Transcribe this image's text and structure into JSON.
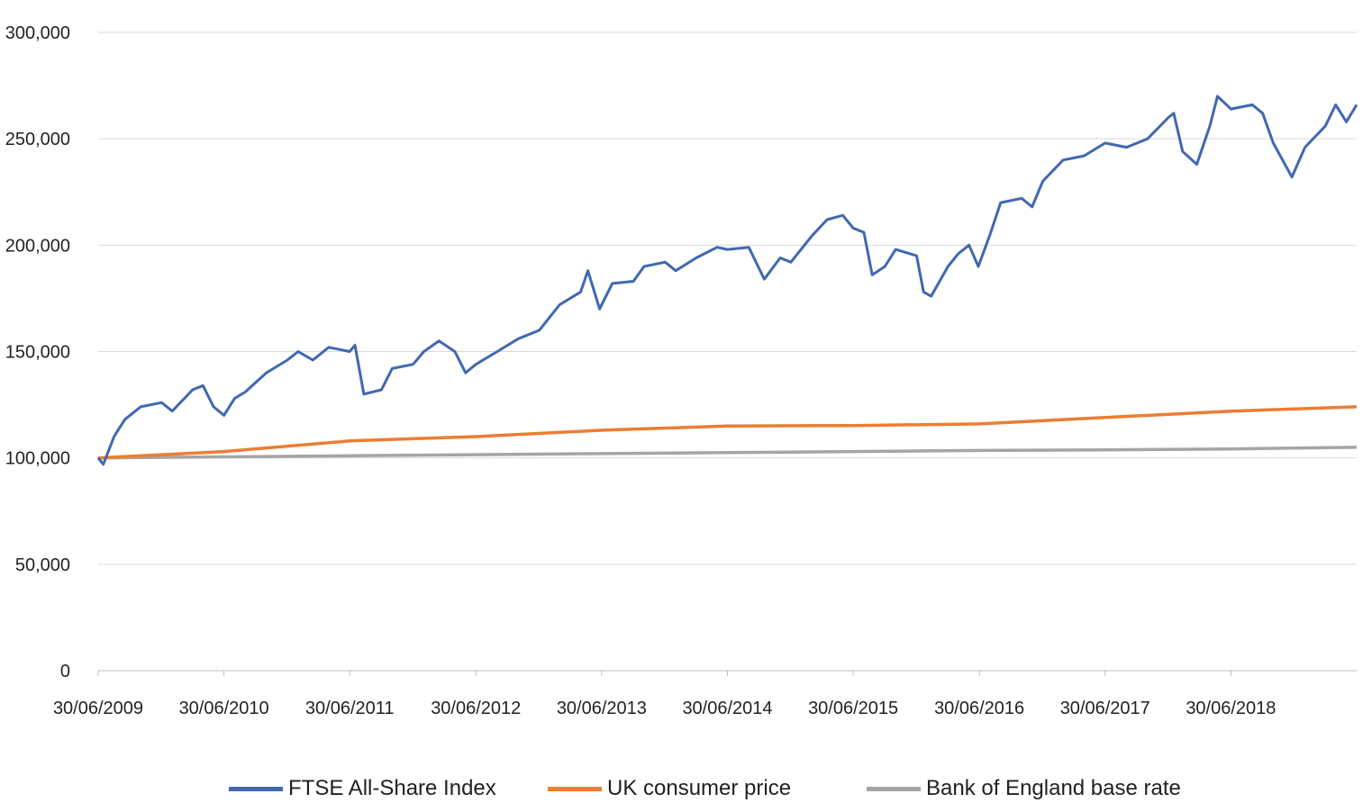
{
  "chart_data": {
    "type": "line",
    "y_ticks": [
      "0",
      "50,000",
      "100,000",
      "150,000",
      "200,000",
      "250,000",
      "300,000"
    ],
    "ylim": [
      0,
      300000
    ],
    "x_ticks": [
      {
        "label": "30/06/2009",
        "date": "2009-06-30"
      },
      {
        "label": "30/06/2010",
        "date": "2010-06-30"
      },
      {
        "label": "30/06/2011",
        "date": "2011-06-30"
      },
      {
        "label": "30/06/2012",
        "date": "2012-06-30"
      },
      {
        "label": "30/06/2013",
        "date": "2013-06-30"
      },
      {
        "label": "30/06/2014",
        "date": "2014-06-30"
      },
      {
        "label": "30/06/2015",
        "date": "2015-06-30"
      },
      {
        "label": "30/06/2016",
        "date": "2016-06-30"
      },
      {
        "label": "30/06/2017",
        "date": "2017-06-30"
      },
      {
        "label": "30/06/2018",
        "date": "2018-06-30"
      }
    ],
    "xlim": [
      "2009-06-30",
      "2019-06-30"
    ],
    "grid": "horizontal",
    "legend_position": "bottom",
    "series": [
      {
        "name": "FTSE All-Share Index",
        "color": "#4068b1",
        "points": [
          [
            "2009-06-30",
            100000
          ],
          [
            "2009-07-15",
            97000
          ],
          [
            "2009-08-15",
            110000
          ],
          [
            "2009-09-15",
            118000
          ],
          [
            "2009-10-31",
            124000
          ],
          [
            "2009-12-31",
            126000
          ],
          [
            "2010-01-31",
            122000
          ],
          [
            "2010-03-31",
            132000
          ],
          [
            "2010-04-30",
            134000
          ],
          [
            "2010-05-31",
            124000
          ],
          [
            "2010-06-30",
            120000
          ],
          [
            "2010-07-31",
            128000
          ],
          [
            "2010-08-31",
            131000
          ],
          [
            "2010-10-31",
            140000
          ],
          [
            "2010-12-31",
            146000
          ],
          [
            "2011-01-31",
            150000
          ],
          [
            "2011-03-15",
            146000
          ],
          [
            "2011-04-30",
            152000
          ],
          [
            "2011-06-30",
            150000
          ],
          [
            "2011-07-15",
            153000
          ],
          [
            "2011-08-10",
            130000
          ],
          [
            "2011-09-30",
            132000
          ],
          [
            "2011-10-31",
            142000
          ],
          [
            "2011-12-31",
            144000
          ],
          [
            "2012-01-31",
            150000
          ],
          [
            "2012-03-15",
            155000
          ],
          [
            "2012-04-30",
            150000
          ],
          [
            "2012-05-31",
            140000
          ],
          [
            "2012-06-30",
            144000
          ],
          [
            "2012-08-31",
            150000
          ],
          [
            "2012-10-31",
            156000
          ],
          [
            "2012-12-31",
            160000
          ],
          [
            "2013-02-28",
            172000
          ],
          [
            "2013-04-30",
            178000
          ],
          [
            "2013-05-21",
            188000
          ],
          [
            "2013-06-24",
            170000
          ],
          [
            "2013-07-31",
            182000
          ],
          [
            "2013-09-30",
            183000
          ],
          [
            "2013-10-31",
            190000
          ],
          [
            "2013-12-31",
            192000
          ],
          [
            "2014-01-31",
            188000
          ],
          [
            "2014-03-31",
            194000
          ],
          [
            "2014-05-31",
            199000
          ],
          [
            "2014-06-30",
            198000
          ],
          [
            "2014-08-31",
            199000
          ],
          [
            "2014-10-15",
            184000
          ],
          [
            "2014-11-30",
            194000
          ],
          [
            "2014-12-31",
            192000
          ],
          [
            "2015-02-28",
            204000
          ],
          [
            "2015-04-15",
            212000
          ],
          [
            "2015-05-31",
            214000
          ],
          [
            "2015-06-30",
            208000
          ],
          [
            "2015-07-31",
            206000
          ],
          [
            "2015-08-24",
            186000
          ],
          [
            "2015-09-30",
            190000
          ],
          [
            "2015-10-31",
            198000
          ],
          [
            "2015-12-31",
            195000
          ],
          [
            "2016-01-20",
            178000
          ],
          [
            "2016-02-11",
            176000
          ],
          [
            "2016-03-31",
            190000
          ],
          [
            "2016-04-30",
            196000
          ],
          [
            "2016-05-31",
            200000
          ],
          [
            "2016-06-27",
            190000
          ],
          [
            "2016-07-31",
            205000
          ],
          [
            "2016-08-31",
            220000
          ],
          [
            "2016-10-31",
            222000
          ],
          [
            "2016-11-30",
            218000
          ],
          [
            "2016-12-31",
            230000
          ],
          [
            "2017-02-28",
            240000
          ],
          [
            "2017-04-30",
            242000
          ],
          [
            "2017-06-30",
            248000
          ],
          [
            "2017-08-31",
            246000
          ],
          [
            "2017-10-31",
            250000
          ],
          [
            "2017-12-31",
            260000
          ],
          [
            "2018-01-15",
            262000
          ],
          [
            "2018-02-10",
            244000
          ],
          [
            "2018-03-23",
            238000
          ],
          [
            "2018-04-30",
            256000
          ],
          [
            "2018-05-22",
            270000
          ],
          [
            "2018-06-30",
            264000
          ],
          [
            "2018-08-31",
            266000
          ],
          [
            "2018-09-30",
            262000
          ],
          [
            "2018-10-31",
            248000
          ],
          [
            "2018-12-24",
            232000
          ],
          [
            "2019-01-31",
            246000
          ],
          [
            "2019-03-31",
            256000
          ],
          [
            "2019-04-30",
            266000
          ],
          [
            "2019-05-31",
            258000
          ],
          [
            "2019-06-30",
            266000
          ]
        ]
      },
      {
        "name": "UK consumer price",
        "color": "#ed7d31",
        "points": [
          [
            "2009-06-30",
            100000
          ],
          [
            "2010-06-30",
            103000
          ],
          [
            "2011-06-30",
            108000
          ],
          [
            "2012-06-30",
            110000
          ],
          [
            "2013-06-30",
            113000
          ],
          [
            "2014-06-30",
            115000
          ],
          [
            "2015-06-30",
            115200
          ],
          [
            "2016-06-30",
            116000
          ],
          [
            "2017-06-30",
            119000
          ],
          [
            "2018-06-30",
            122000
          ],
          [
            "2019-06-30",
            124000
          ]
        ]
      },
      {
        "name": "Bank of England base rate",
        "color": "#a5a5a5",
        "points": [
          [
            "2009-06-30",
            100000
          ],
          [
            "2010-06-30",
            100500
          ],
          [
            "2011-06-30",
            101000
          ],
          [
            "2012-06-30",
            101500
          ],
          [
            "2013-06-30",
            102000
          ],
          [
            "2014-06-30",
            102500
          ],
          [
            "2015-06-30",
            103000
          ],
          [
            "2016-06-30",
            103500
          ],
          [
            "2017-06-30",
            103800
          ],
          [
            "2018-06-30",
            104200
          ],
          [
            "2019-06-30",
            105000
          ]
        ]
      }
    ]
  }
}
